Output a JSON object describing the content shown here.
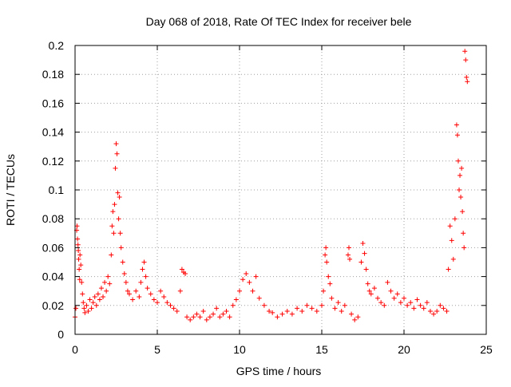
{
  "chart_data": {
    "type": "scatter",
    "title": "Day 068 of 2018, Rate Of TEC Index for receiver bele",
    "xlabel": "GPS time / hours",
    "ylabel": "ROTI / TECUs",
    "xlim": [
      0,
      25
    ],
    "ylim": [
      0,
      0.2
    ],
    "xticks": [
      0,
      5,
      10,
      15,
      20,
      25
    ],
    "xtick_labels": [
      "0",
      "5",
      "10",
      "15",
      "20",
      "25"
    ],
    "yticks": [
      0,
      0.02,
      0.04,
      0.06,
      0.08,
      0.1,
      0.12,
      0.14,
      0.16,
      0.18,
      0.2
    ],
    "ytick_labels": [
      "0",
      "0.02",
      "0.04",
      "0.06",
      "0.08",
      "0.1",
      "0.12",
      "0.14",
      "0.16",
      "0.18",
      "0.2"
    ],
    "grid": true,
    "grid_style": "dotted",
    "marker": "+",
    "colors": {
      "series": "#ff0000",
      "grid": "#a0a0a0",
      "axis": "#000000"
    },
    "series": [
      {
        "values": [
          [
            0.0,
            0.012
          ],
          [
            0.05,
            0.018
          ],
          [
            0.1,
            0.072
          ],
          [
            0.12,
            0.075
          ],
          [
            0.15,
            0.066
          ],
          [
            0.18,
            0.062
          ],
          [
            0.2,
            0.058
          ],
          [
            0.22,
            0.052
          ],
          [
            0.25,
            0.045
          ],
          [
            0.28,
            0.038
          ],
          [
            0.3,
            0.055
          ],
          [
            0.35,
            0.048
          ],
          [
            0.4,
            0.036
          ],
          [
            0.45,
            0.028
          ],
          [
            0.5,
            0.022
          ],
          [
            0.55,
            0.018
          ],
          [
            0.6,
            0.015
          ],
          [
            0.7,
            0.02
          ],
          [
            0.8,
            0.016
          ],
          [
            0.9,
            0.024
          ],
          [
            1.0,
            0.018
          ],
          [
            1.1,
            0.022
          ],
          [
            1.2,
            0.026
          ],
          [
            1.3,
            0.02
          ],
          [
            1.4,
            0.028
          ],
          [
            1.5,
            0.024
          ],
          [
            1.6,
            0.032
          ],
          [
            1.7,
            0.026
          ],
          [
            1.8,
            0.036
          ],
          [
            1.9,
            0.03
          ],
          [
            2.0,
            0.04
          ],
          [
            2.1,
            0.035
          ],
          [
            2.2,
            0.055
          ],
          [
            2.25,
            0.075
          ],
          [
            2.3,
            0.085
          ],
          [
            2.35,
            0.07
          ],
          [
            2.4,
            0.09
          ],
          [
            2.45,
            0.115
          ],
          [
            2.5,
            0.132
          ],
          [
            2.55,
            0.125
          ],
          [
            2.6,
            0.098
          ],
          [
            2.65,
            0.08
          ],
          [
            2.7,
            0.095
          ],
          [
            2.75,
            0.07
          ],
          [
            2.8,
            0.06
          ],
          [
            2.9,
            0.05
          ],
          [
            3.0,
            0.042
          ],
          [
            3.1,
            0.036
          ],
          [
            3.2,
            0.03
          ],
          [
            3.3,
            0.028
          ],
          [
            3.5,
            0.024
          ],
          [
            3.7,
            0.03
          ],
          [
            3.9,
            0.026
          ],
          [
            4.0,
            0.036
          ],
          [
            4.1,
            0.045
          ],
          [
            4.2,
            0.05
          ],
          [
            4.3,
            0.04
          ],
          [
            4.4,
            0.032
          ],
          [
            4.6,
            0.028
          ],
          [
            4.8,
            0.024
          ],
          [
            5.0,
            0.022
          ],
          [
            5.2,
            0.03
          ],
          [
            5.4,
            0.026
          ],
          [
            5.6,
            0.022
          ],
          [
            5.8,
            0.02
          ],
          [
            6.0,
            0.018
          ],
          [
            6.2,
            0.016
          ],
          [
            6.4,
            0.03
          ],
          [
            6.5,
            0.045
          ],
          [
            6.6,
            0.043
          ],
          [
            6.7,
            0.042
          ],
          [
            6.8,
            0.012
          ],
          [
            7.0,
            0.01
          ],
          [
            7.2,
            0.012
          ],
          [
            7.4,
            0.014
          ],
          [
            7.6,
            0.012
          ],
          [
            7.8,
            0.016
          ],
          [
            8.0,
            0.01
          ],
          [
            8.2,
            0.012
          ],
          [
            8.4,
            0.014
          ],
          [
            8.6,
            0.018
          ],
          [
            8.8,
            0.012
          ],
          [
            9.0,
            0.014
          ],
          [
            9.2,
            0.016
          ],
          [
            9.4,
            0.012
          ],
          [
            9.6,
            0.02
          ],
          [
            9.8,
            0.024
          ],
          [
            10.0,
            0.03
          ],
          [
            10.2,
            0.038
          ],
          [
            10.4,
            0.042
          ],
          [
            10.6,
            0.036
          ],
          [
            10.8,
            0.03
          ],
          [
            11.0,
            0.04
          ],
          [
            11.2,
            0.025
          ],
          [
            11.5,
            0.02
          ],
          [
            11.8,
            0.016
          ],
          [
            12.0,
            0.015
          ],
          [
            12.3,
            0.012
          ],
          [
            12.6,
            0.014
          ],
          [
            12.9,
            0.016
          ],
          [
            13.2,
            0.014
          ],
          [
            13.5,
            0.018
          ],
          [
            13.8,
            0.016
          ],
          [
            14.1,
            0.02
          ],
          [
            14.4,
            0.018
          ],
          [
            14.7,
            0.016
          ],
          [
            15.0,
            0.02
          ],
          [
            15.1,
            0.03
          ],
          [
            15.2,
            0.055
          ],
          [
            15.25,
            0.06
          ],
          [
            15.3,
            0.05
          ],
          [
            15.4,
            0.04
          ],
          [
            15.5,
            0.035
          ],
          [
            15.6,
            0.025
          ],
          [
            15.8,
            0.018
          ],
          [
            16.0,
            0.022
          ],
          [
            16.2,
            0.016
          ],
          [
            16.4,
            0.02
          ],
          [
            16.6,
            0.055
          ],
          [
            16.65,
            0.06
          ],
          [
            16.7,
            0.052
          ],
          [
            16.8,
            0.014
          ],
          [
            17.0,
            0.01
          ],
          [
            17.2,
            0.012
          ],
          [
            17.4,
            0.05
          ],
          [
            17.5,
            0.063
          ],
          [
            17.6,
            0.056
          ],
          [
            17.7,
            0.045
          ],
          [
            17.8,
            0.035
          ],
          [
            17.9,
            0.03
          ],
          [
            18.0,
            0.028
          ],
          [
            18.2,
            0.032
          ],
          [
            18.4,
            0.025
          ],
          [
            18.6,
            0.022
          ],
          [
            18.8,
            0.02
          ],
          [
            19.0,
            0.036
          ],
          [
            19.2,
            0.03
          ],
          [
            19.4,
            0.025
          ],
          [
            19.6,
            0.028
          ],
          [
            19.8,
            0.022
          ],
          [
            20.0,
            0.025
          ],
          [
            20.2,
            0.02
          ],
          [
            20.4,
            0.022
          ],
          [
            20.6,
            0.018
          ],
          [
            20.8,
            0.024
          ],
          [
            21.0,
            0.02
          ],
          [
            21.2,
            0.018
          ],
          [
            21.4,
            0.022
          ],
          [
            21.6,
            0.016
          ],
          [
            21.8,
            0.014
          ],
          [
            22.0,
            0.016
          ],
          [
            22.2,
            0.02
          ],
          [
            22.4,
            0.018
          ],
          [
            22.6,
            0.016
          ],
          [
            22.7,
            0.045
          ],
          [
            22.8,
            0.075
          ],
          [
            22.9,
            0.065
          ],
          [
            23.0,
            0.052
          ],
          [
            23.1,
            0.08
          ],
          [
            23.2,
            0.145
          ],
          [
            23.25,
            0.138
          ],
          [
            23.3,
            0.12
          ],
          [
            23.35,
            0.1
          ],
          [
            23.4,
            0.11
          ],
          [
            23.45,
            0.095
          ],
          [
            23.5,
            0.115
          ],
          [
            23.55,
            0.085
          ],
          [
            23.6,
            0.07
          ],
          [
            23.65,
            0.06
          ],
          [
            23.7,
            0.196
          ],
          [
            23.75,
            0.19
          ],
          [
            23.8,
            0.178
          ],
          [
            23.85,
            0.175
          ]
        ]
      }
    ]
  }
}
